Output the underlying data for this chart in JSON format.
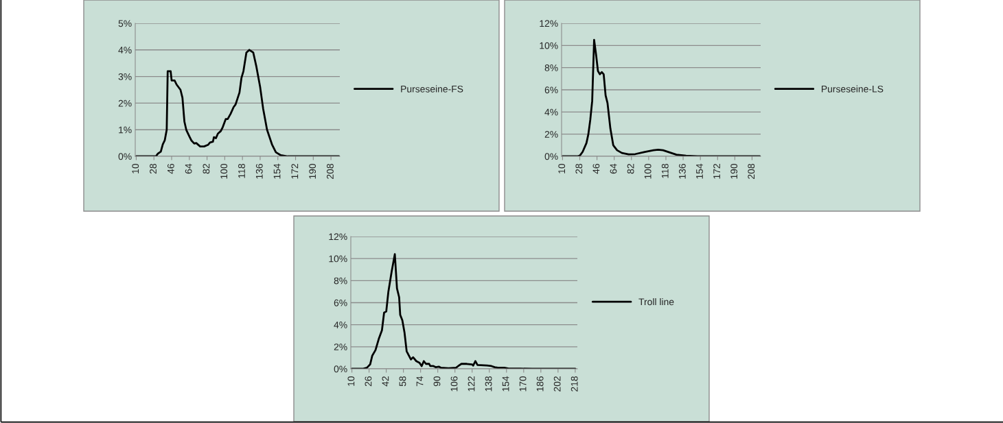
{
  "chart_data": [
    {
      "type": "line",
      "x": [
        10,
        30,
        32,
        35,
        37,
        39,
        41,
        42,
        45,
        46,
        49,
        51,
        55,
        57,
        59,
        61,
        64,
        66,
        69,
        71,
        75,
        79,
        83,
        85,
        88,
        89,
        91,
        93,
        96,
        98,
        101,
        103,
        106,
        109,
        111,
        115,
        117,
        119,
        122,
        125,
        129,
        132,
        136,
        139,
        143,
        148,
        152,
        157,
        164,
        216
      ],
      "series": [
        {
          "name": "Purseseine-FS",
          "color": "#000000",
          "values": [
            0,
            0,
            0.1,
            0.18,
            0.45,
            0.6,
            1.0,
            3.2,
            3.2,
            2.85,
            2.85,
            2.7,
            2.5,
            2.2,
            1.3,
            0.98,
            0.75,
            0.6,
            0.48,
            0.5,
            0.37,
            0.37,
            0.43,
            0.52,
            0.55,
            0.72,
            0.68,
            0.85,
            0.95,
            1.1,
            1.4,
            1.4,
            1.6,
            1.85,
            1.95,
            2.4,
            2.95,
            3.2,
            3.9,
            4.0,
            3.9,
            3.4,
            2.6,
            1.8,
            1.0,
            0.45,
            0.15,
            0.04,
            0,
            0
          ]
        }
      ],
      "xlim": [
        9,
        217
      ],
      "xticks": [
        10,
        28,
        46,
        64,
        82,
        100,
        118,
        136,
        154,
        172,
        190,
        208
      ],
      "ylim": [
        0,
        5
      ],
      "yticks": [
        {
          "value": 0,
          "label": "0%"
        },
        {
          "value": 1,
          "label": "1%"
        },
        {
          "value": 2,
          "label": "2%"
        },
        {
          "value": 3,
          "label": "3%"
        },
        {
          "value": 4,
          "label": "4%"
        },
        {
          "value": 5,
          "label": "5%"
        }
      ],
      "grid": "y",
      "legend": "right"
    },
    {
      "type": "line",
      "x": [
        10,
        25,
        28,
        31,
        35,
        37,
        39,
        41,
        43,
        45,
        47,
        49,
        51,
        53,
        55,
        57,
        60,
        63,
        67,
        72,
        79,
        86,
        96,
        105,
        110,
        115,
        122,
        129,
        139,
        151,
        216
      ],
      "series": [
        {
          "name": "Purseseine-LS",
          "color": "#000000",
          "values": [
            0,
            0,
            0.05,
            0.4,
            1.2,
            2.0,
            3.3,
            5,
            10.5,
            9.2,
            7.7,
            7.4,
            7.6,
            7.4,
            5.5,
            4.8,
            2.5,
            1.0,
            0.55,
            0.3,
            0.18,
            0.2,
            0.4,
            0.55,
            0.6,
            0.55,
            0.35,
            0.15,
            0.05,
            0,
            0
          ]
        }
      ],
      "xlim": [
        9,
        217
      ],
      "xticks": [
        10,
        28,
        46,
        64,
        82,
        100,
        118,
        136,
        154,
        172,
        190,
        208
      ],
      "ylim": [
        0,
        12
      ],
      "yticks": [
        {
          "value": 0,
          "label": "0%"
        },
        {
          "value": 2,
          "label": "2%"
        },
        {
          "value": 4,
          "label": "4%"
        },
        {
          "value": 6,
          "label": "6%"
        },
        {
          "value": 8,
          "label": "8%"
        },
        {
          "value": 10,
          "label": "10%"
        },
        {
          "value": 12,
          "label": "12%"
        }
      ],
      "grid": "y",
      "legend": "right"
    },
    {
      "type": "line",
      "x": [
        10,
        20,
        24,
        27,
        29,
        32,
        35,
        38,
        40,
        42,
        44,
        47,
        50,
        52,
        54,
        55,
        57,
        59,
        61,
        65,
        67,
        70,
        73,
        75,
        77,
        79,
        82,
        83,
        86,
        88,
        91,
        93,
        100,
        107,
        109,
        112,
        117,
        122,
        123,
        125,
        127,
        136,
        140,
        143,
        146,
        152,
        156,
        167,
        178,
        218
      ],
      "series": [
        {
          "name": "Troll line",
          "color": "#000000",
          "values": [
            0,
            0,
            0.1,
            0.4,
            1.2,
            1.7,
            2.7,
            3.5,
            5.1,
            5.2,
            7.0,
            8.8,
            10.4,
            7.3,
            6.5,
            4.9,
            4.4,
            3.3,
            1.6,
            0.85,
            1.05,
            0.7,
            0.55,
            0.25,
            0.7,
            0.45,
            0.45,
            0.25,
            0.25,
            0.15,
            0.2,
            0.1,
            0.05,
            0.1,
            0.25,
            0.45,
            0.45,
            0.4,
            0.3,
            0.7,
            0.35,
            0.3,
            0.25,
            0.15,
            0.1,
            0.1,
            0.03,
            0.02,
            0,
            0
          ]
        }
      ],
      "xlim": [
        9,
        220
      ],
      "xticks": [
        10,
        26,
        42,
        58,
        74,
        90,
        106,
        122,
        138,
        154,
        170,
        186,
        202,
        218
      ],
      "ylim": [
        0,
        12
      ],
      "yticks": [
        {
          "value": 0,
          "label": "0%"
        },
        {
          "value": 2,
          "label": "2%"
        },
        {
          "value": 4,
          "label": "4%"
        },
        {
          "value": 6,
          "label": "6%"
        },
        {
          "value": 8,
          "label": "8%"
        },
        {
          "value": 10,
          "label": "10%"
        },
        {
          "value": 12,
          "label": "12%"
        }
      ],
      "grid": "y",
      "legend": "right"
    }
  ]
}
